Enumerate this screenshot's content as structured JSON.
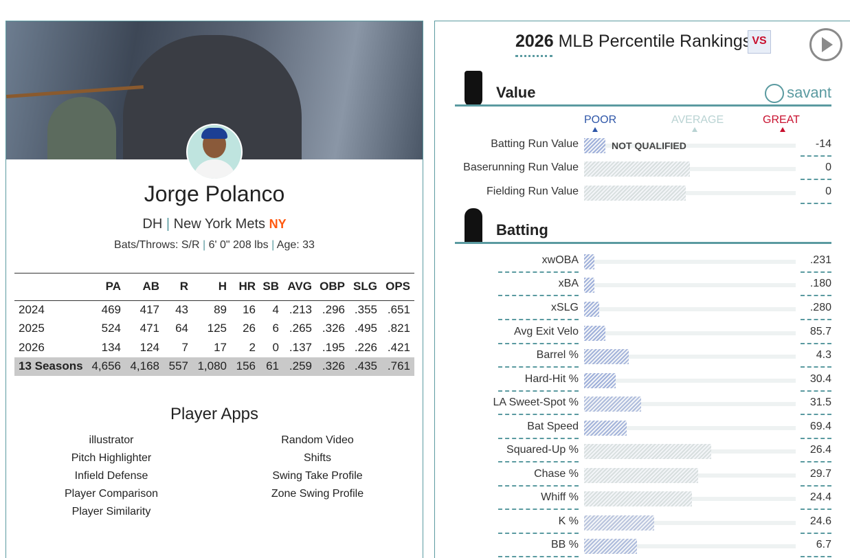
{
  "player": {
    "name": "Jorge Polanco",
    "position": "DH",
    "team": "New York Mets",
    "bats_throws": "Bats/Throws: S/R",
    "size": "6' 0\" 208 lbs",
    "age": "Age: 33"
  },
  "stats": {
    "columns": [
      "PA",
      "AB",
      "R",
      "H",
      "HR",
      "SB",
      "AVG",
      "OBP",
      "SLG",
      "OPS"
    ],
    "rows": [
      {
        "label": "2024",
        "cells": [
          "469",
          "417",
          "43",
          "89",
          "16",
          "4",
          ".213",
          ".296",
          ".355",
          ".651"
        ]
      },
      {
        "label": "2025",
        "cells": [
          "524",
          "471",
          "64",
          "125",
          "26",
          "6",
          ".265",
          ".326",
          ".495",
          ".821"
        ]
      },
      {
        "label": "2026",
        "cells": [
          "134",
          "124",
          "7",
          "17",
          "2",
          "0",
          ".137",
          ".195",
          ".226",
          ".421"
        ]
      },
      {
        "label": "13 Seasons",
        "cells": [
          "4,656",
          "4,168",
          "557",
          "1,080",
          "156",
          "61",
          ".259",
          ".326",
          ".435",
          ".761"
        ]
      }
    ]
  },
  "apps": {
    "title": "Player Apps",
    "left": [
      "illustrator",
      "Pitch Highlighter",
      "Infield Defense",
      "Player Comparison",
      "Player Similarity"
    ],
    "right": [
      "Random Video",
      "Shifts",
      "Swing Take Profile",
      "Zone Swing Profile"
    ]
  },
  "rankings": {
    "year": "2026",
    "title": "MLB Percentile Rankings",
    "brand": "savant",
    "legend": {
      "poor": "POOR",
      "average": "AVERAGE",
      "great": "GREAT"
    },
    "sections": [
      {
        "title": "Value",
        "rows": [
          {
            "label": "Batting Run Value",
            "value": "-14",
            "percentile": 10,
            "color": "#9fb0da",
            "note": "NOT QUALIFIED"
          },
          {
            "label": "Baserunning Run Value",
            "value": "0",
            "percentile": 50,
            "color": "#d8dfdf"
          },
          {
            "label": "Fielding Run Value",
            "value": "0",
            "percentile": 48,
            "color": "#d8dfdf"
          }
        ]
      },
      {
        "title": "Batting",
        "rows": [
          {
            "label": "xwOBA",
            "value": ".231",
            "percentile": 5,
            "color": "#9fb0da"
          },
          {
            "label": "xBA",
            "value": ".180",
            "percentile": 5,
            "color": "#9fb0da"
          },
          {
            "label": "xSLG",
            "value": ".280",
            "percentile": 7,
            "color": "#9fb0da"
          },
          {
            "label": "Avg Exit Velo",
            "value": "85.7",
            "percentile": 10,
            "color": "#9fb0da"
          },
          {
            "label": "Barrel %",
            "value": "4.3",
            "percentile": 21,
            "color": "#a4b4da"
          },
          {
            "label": "Hard-Hit %",
            "value": "30.4",
            "percentile": 15,
            "color": "#9fb0da"
          },
          {
            "label": "LA Sweet-Spot %",
            "value": "31.5",
            "percentile": 27,
            "color": "#aebcdc"
          },
          {
            "label": "Bat Speed",
            "value": "69.4",
            "percentile": 20,
            "color": "#a4b4da"
          },
          {
            "label": "Squared-Up %",
            "value": "26.4",
            "percentile": 60,
            "color": "#d8dfdf"
          },
          {
            "label": "Chase %",
            "value": "29.7",
            "percentile": 54,
            "color": "#d8dfdf"
          },
          {
            "label": "Whiff %",
            "value": "24.4",
            "percentile": 51,
            "color": "#d8dfdf"
          },
          {
            "label": "K %",
            "value": "24.6",
            "percentile": 33,
            "color": "#b9c4dd"
          },
          {
            "label": "BB %",
            "value": "6.7",
            "percentile": 25,
            "color": "#aebcdc"
          }
        ]
      }
    ]
  }
}
